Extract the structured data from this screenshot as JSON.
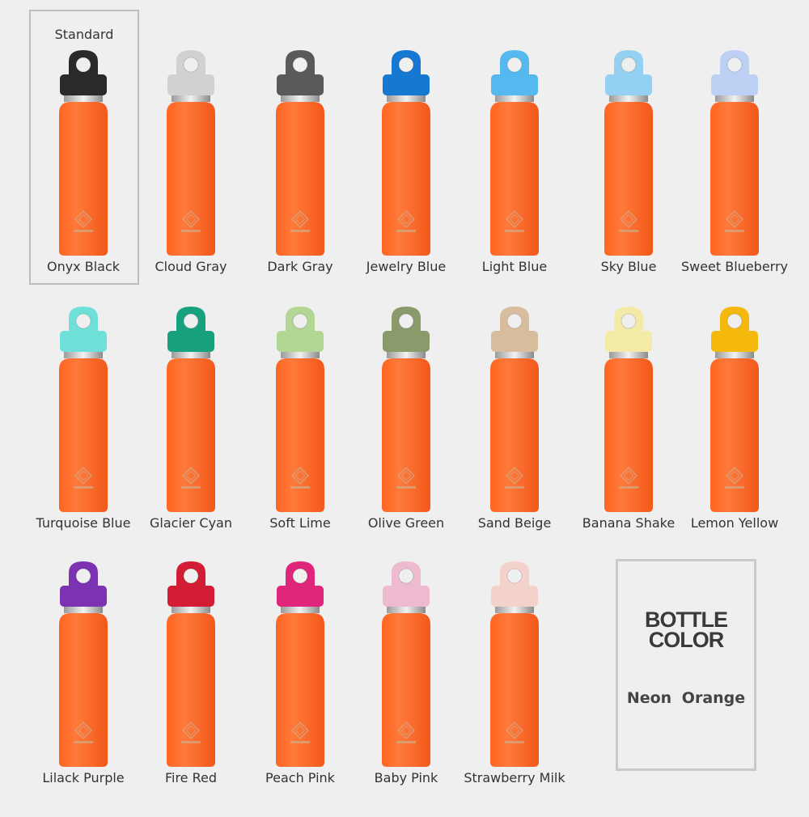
{
  "standard_label": "Standard",
  "bottle_color": {
    "title_line1": "BOTTLE",
    "title_line2": "COLOR",
    "name": "Neon  Orange",
    "hex": "#ff6520"
  },
  "brand": "REVOMAX",
  "caps": [
    {
      "label": "Onyx Black",
      "color": "#2a2a2a"
    },
    {
      "label": "Cloud Gray",
      "color": "#cfd2d1"
    },
    {
      "label": "Dark Gray",
      "color": "#585a5c"
    },
    {
      "label": "Jewelry Blue",
      "color": "#1678d0"
    },
    {
      "label": "Light Blue",
      "color": "#55b8ee"
    },
    {
      "label": "Sky Blue",
      "color": "#93d0f2"
    },
    {
      "label": "Sweet Blueberry",
      "color": "#bcd0f4"
    },
    {
      "label": "Turquoise Blue",
      "color": "#6ee0d8"
    },
    {
      "label": "Glacier Cyan",
      "color": "#17a27d"
    },
    {
      "label": "Soft Lime",
      "color": "#b2d694"
    },
    {
      "label": "Olive Green",
      "color": "#8a9a6a"
    },
    {
      "label": "Sand Beige",
      "color": "#d8bc9e"
    },
    {
      "label": "Banana Shake",
      "color": "#f3eaa8"
    },
    {
      "label": "Lemon Yellow",
      "color": "#f4b90c"
    },
    {
      "label": "Lilack Purple",
      "color": "#7c33b2"
    },
    {
      "label": "Fire Red",
      "color": "#d21d35"
    },
    {
      "label": "Peach Pink",
      "color": "#e0267a"
    },
    {
      "label": "Baby Pink",
      "color": "#eebad0"
    },
    {
      "label": "Strawberry Milk",
      "color": "#f4d2cc"
    }
  ]
}
